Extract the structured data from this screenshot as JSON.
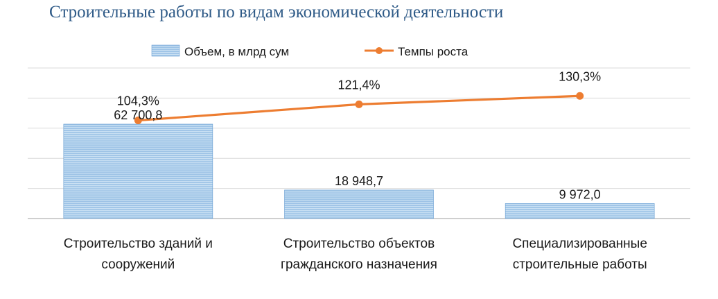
{
  "colors": {
    "title": "#2e5a87",
    "bar_fill": "#9dc3e6",
    "bar_stripe": "#c9e0f3",
    "bar_stroke": "#6a9fd2",
    "line": "#ed7d31",
    "grid": "#d9d9d9",
    "axis": "#bfbfbf",
    "text": "#1a1a1a"
  },
  "chart_data": {
    "type": "bar",
    "title": "Строительные работы по видам экономической деятельности",
    "categories": [
      [
        "Строительство зданий и",
        "сооружений"
      ],
      [
        "Строительство объектов",
        "гражданского назначения"
      ],
      [
        "Специализированные",
        "строительные работы"
      ]
    ],
    "series": [
      {
        "name": "Объем, в млрд сум",
        "type": "bar",
        "axis": "primary",
        "values": [
          62700.8,
          18948.7,
          9972.0
        ],
        "labels": [
          "62 700,8",
          "18 948,7",
          "9 972,0"
        ]
      },
      {
        "name": "Темпы роста",
        "type": "line",
        "axis": "secondary",
        "values": [
          104.3,
          121.4,
          130.3
        ],
        "labels": [
          "104,3%",
          "121,4%",
          "130,3%"
        ]
      }
    ],
    "ylim": [
      0,
      100000
    ],
    "y2lim": [
      0,
      160
    ],
    "grid": true,
    "legend_position": "top"
  }
}
